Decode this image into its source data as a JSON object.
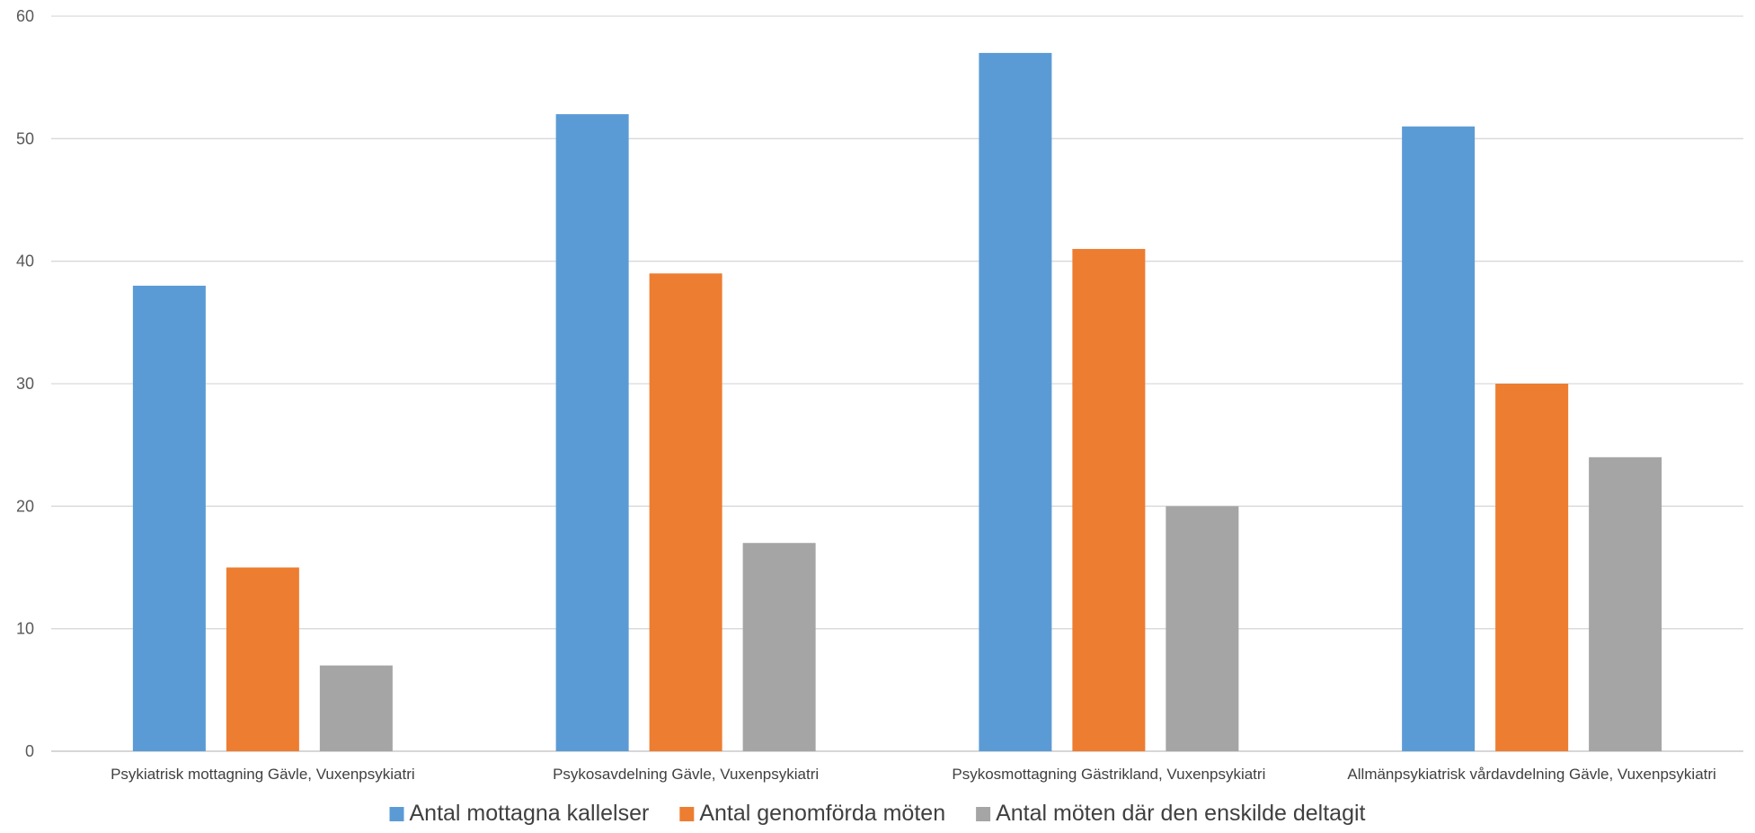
{
  "chart_data": {
    "type": "bar",
    "title": "",
    "xlabel": "",
    "ylabel": "",
    "ylim": [
      0,
      60
    ],
    "yticks": [
      0,
      10,
      20,
      30,
      40,
      50,
      60
    ],
    "grid": true,
    "legend_position": "bottom",
    "categories": [
      "Psykiatrisk mottagning Gävle, Vuxenpsykiatri",
      "Psykosavdelning Gävle, Vuxenpsykiatri",
      "Psykosmottagning Gästrikland, Vuxenpsykiatri",
      "Allmänpsykiatrisk vårdavdelning Gävle, Vuxenpsykiatri"
    ],
    "series": [
      {
        "name": "Antal mottagna kallelser",
        "color": "#5B9BD5",
        "values": [
          38,
          52,
          57,
          51
        ]
      },
      {
        "name": "Antal genomförda möten",
        "color": "#ED7D31",
        "values": [
          15,
          39,
          41,
          30
        ]
      },
      {
        "name": "Antal möten där den enskilde deltagit",
        "color": "#A5A5A5",
        "values": [
          7,
          17,
          20,
          24
        ]
      }
    ]
  }
}
